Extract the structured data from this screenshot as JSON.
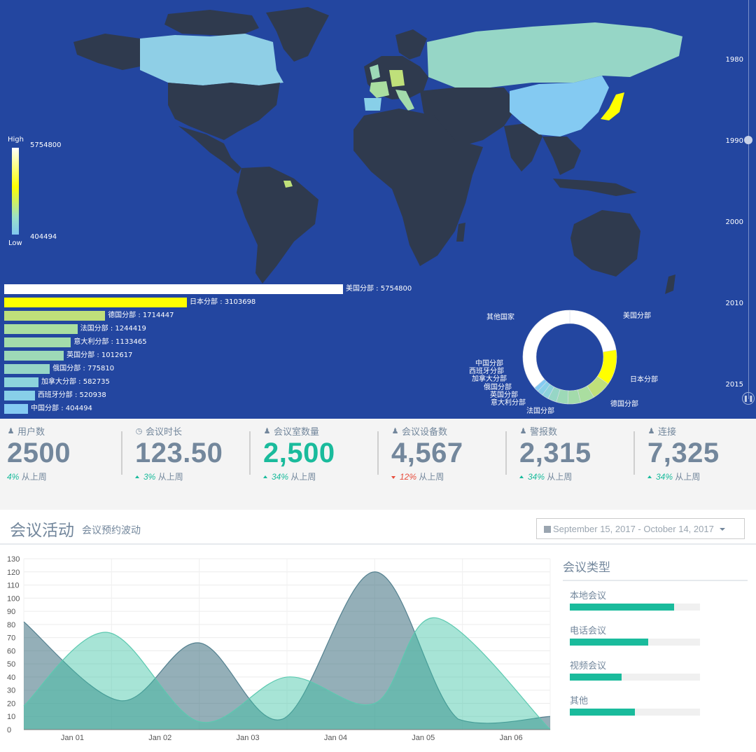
{
  "map": {
    "visualmap": {
      "high_label": "High",
      "low_label": "Low",
      "max": "5754800",
      "min": "404494"
    },
    "bars": [
      {
        "name": "美国分部",
        "value": 5754800,
        "text": "美国分部 : 5754800",
        "color": "#ffffff"
      },
      {
        "name": "日本分部",
        "value": 3103698,
        "text": "日本分部 : 3103698",
        "color": "#ffff00"
      },
      {
        "name": "德国分部",
        "value": 1714447,
        "text": "德国分部 : 1714447",
        "color": "#bfe07a"
      },
      {
        "name": "法国分部",
        "value": 1244419,
        "text": "法国分部 : 1244419",
        "color": "#aadea0"
      },
      {
        "name": "意大利分部",
        "value": 1133465,
        "text": "意大利分部 : 1133465",
        "color": "#a3dbab"
      },
      {
        "name": "英国分部",
        "value": 1012617,
        "text": "英国分部 : 1012617",
        "color": "#9dd9b7"
      },
      {
        "name": "俄国分部",
        "value": 775810,
        "text": "俄国分部 : 775810",
        "color": "#96d6c6"
      },
      {
        "name": "加拿大分部",
        "value": 582735,
        "text": "加拿大分部 : 582735",
        "color": "#8dd3dc"
      },
      {
        "name": "西班牙分部",
        "value": 520938,
        "text": "西班牙分部 : 520938",
        "color": "#88cfe8"
      },
      {
        "name": "中国分部",
        "value": 404494,
        "text": "中国分部 : 404494",
        "color": "#84caf2"
      }
    ],
    "timeline": [
      "1980",
      "1990",
      "2000",
      "2010",
      "2015"
    ],
    "donut": {
      "labels": [
        "其他国家",
        "美国分部",
        "日本分部",
        "德国分部",
        "法国分部",
        "意大利分部",
        "英国分部",
        "俄国分部",
        "加拿大分部",
        "西班牙分部",
        "中国分部"
      ],
      "slices": [
        {
          "name": "美国分部",
          "value": 5754800,
          "color": "#ffffff"
        },
        {
          "name": "日本分部",
          "value": 3103698,
          "color": "#ffff00"
        },
        {
          "name": "德国分部",
          "value": 1714447,
          "color": "#bfe07a"
        },
        {
          "name": "法国分部",
          "value": 1244419,
          "color": "#aadea0"
        },
        {
          "name": "意大利分部",
          "value": 1133465,
          "color": "#a3dbab"
        },
        {
          "name": "英国分部",
          "value": 1012617,
          "color": "#9dd9b7"
        },
        {
          "name": "俄国分部",
          "value": 775810,
          "color": "#96d6c6"
        },
        {
          "name": "加拿大分部",
          "value": 582735,
          "color": "#8dd3dc"
        },
        {
          "name": "西班牙分部",
          "value": 520938,
          "color": "#88cfe8"
        },
        {
          "name": "中国分部",
          "value": 404494,
          "color": "#84caf2"
        },
        {
          "name": "其他国家",
          "value": 9300000,
          "color": "#ffffff"
        }
      ]
    }
  },
  "stats": [
    {
      "title": "用户数",
      "icon": "user-icon",
      "value": "2500",
      "pct": "4%",
      "suffix": "从上周",
      "trend": "none",
      "value_color": "default"
    },
    {
      "title": "会议时长",
      "icon": "clock-icon",
      "value": "123.50",
      "pct": "3%",
      "suffix": "从上周",
      "trend": "up",
      "value_color": "default"
    },
    {
      "title": "会议室数量",
      "icon": "user-icon",
      "value": "2,500",
      "pct": "34%",
      "suffix": "从上周",
      "trend": "up",
      "value_color": "green"
    },
    {
      "title": "会议设备数",
      "icon": "user-icon",
      "value": "4,567",
      "pct": "12%",
      "suffix": "从上周",
      "trend": "down",
      "value_color": "default"
    },
    {
      "title": "警报数",
      "icon": "user-icon",
      "value": "2,315",
      "pct": "34%",
      "suffix": "从上周",
      "trend": "up",
      "value_color": "default"
    },
    {
      "title": "连接",
      "icon": "user-icon",
      "value": "7,325",
      "pct": "34%",
      "suffix": "从上周",
      "trend": "up",
      "value_color": "default"
    }
  ],
  "activity": {
    "title": "会议活动",
    "subtitle": "会议预约波动",
    "date_range": "September 15, 2017 - October 14, 2017",
    "types_title": "会议类型",
    "types": [
      {
        "label": "本地会议",
        "percent": 80
      },
      {
        "label": "电话会议",
        "percent": 60
      },
      {
        "label": "视频会议",
        "percent": 40
      },
      {
        "label": "其他",
        "percent": 50
      }
    ]
  },
  "chart_data": {
    "type": "area",
    "x_labels": [
      "Jan 01",
      "Jan 02",
      "Jan 03",
      "Jan 04",
      "Jan 05",
      "Jan 06"
    ],
    "ylim": [
      0,
      130
    ],
    "y_ticks": [
      0,
      10,
      20,
      30,
      40,
      50,
      60,
      70,
      80,
      90,
      100,
      110,
      120,
      130
    ],
    "series": [
      {
        "color": "#53808f",
        "points": [
          [
            0,
            82
          ],
          [
            1.1,
            22
          ],
          [
            2,
            66
          ],
          [
            2.95,
            8
          ],
          [
            4,
            120
          ],
          [
            4.95,
            8
          ],
          [
            6,
            10
          ]
        ]
      },
      {
        "color": "#5cc9b0",
        "points": [
          [
            0,
            18
          ],
          [
            0.95,
            74
          ],
          [
            2,
            6
          ],
          [
            3,
            40
          ],
          [
            4,
            20
          ],
          [
            4.7,
            85
          ],
          [
            6,
            0
          ]
        ]
      }
    ]
  }
}
